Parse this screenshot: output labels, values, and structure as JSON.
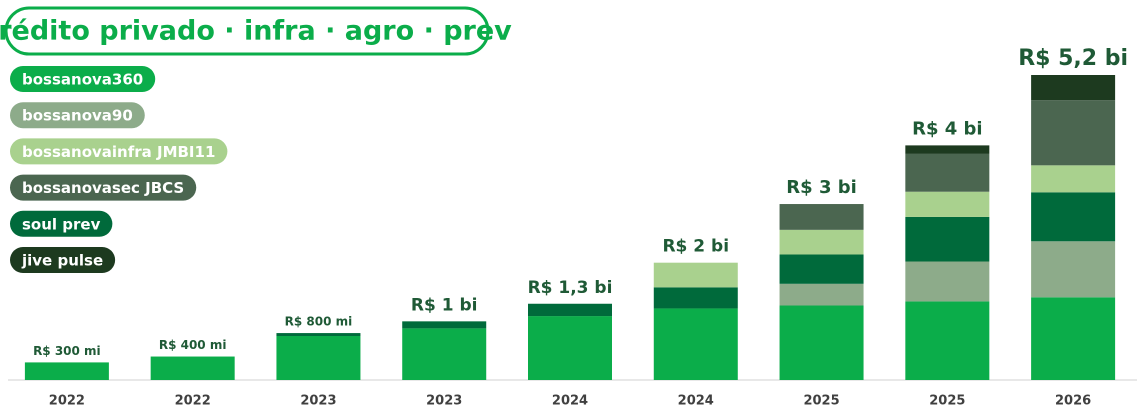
{
  "chart_data": {
    "type": "stacked_bar",
    "title": "crédito privado · infra · agro · prev",
    "categories": [
      "2022",
      "2022",
      "2023",
      "2023",
      "2024",
      "2024",
      "2025",
      "2025",
      "2026"
    ],
    "series": [
      {
        "name": "bossanova360",
        "color": "#0bad4a",
        "values": [
          300,
          400,
          750,
          880,
          1090,
          1220,
          1270,
          1340,
          1410
        ]
      },
      {
        "name": "bossanova90",
        "color": "#8dab8a",
        "values": [
          0,
          0,
          0,
          0,
          0,
          0,
          370,
          680,
          955
        ]
      },
      {
        "name": "bossanovainfra JMBI11",
        "color": "#a9d18e",
        "values": [
          0,
          0,
          0,
          0,
          0,
          420,
          420,
          430,
          460
        ]
      },
      {
        "name": "bossanovasec JBCS",
        "color": "#4b6650",
        "values": [
          0,
          0,
          0,
          0,
          0,
          0,
          440,
          645,
          1110
        ]
      },
      {
        "name": "soul prev",
        "color": "#006a3b",
        "values": [
          0,
          0,
          50,
          120,
          210,
          360,
          500,
          760,
          835
        ]
      },
      {
        "name": "jive pulse",
        "color": "#1d3a1f",
        "values": [
          0,
          0,
          0,
          0,
          0,
          0,
          0,
          145,
          430
        ]
      }
    ],
    "totals": [
      300,
      400,
      800,
      1000,
      1300,
      2000,
      3000,
      4000,
      5200
    ],
    "total_labels": [
      "R$ 300 mi",
      "R$ 400 mi",
      "R$ 800 mi",
      "R$ 1 bi",
      "R$ 1,3 bi",
      "R$ 2 bi",
      "R$ 3 bi",
      "R$ 4 bi",
      "R$ 5,2 bi"
    ]
  }
}
